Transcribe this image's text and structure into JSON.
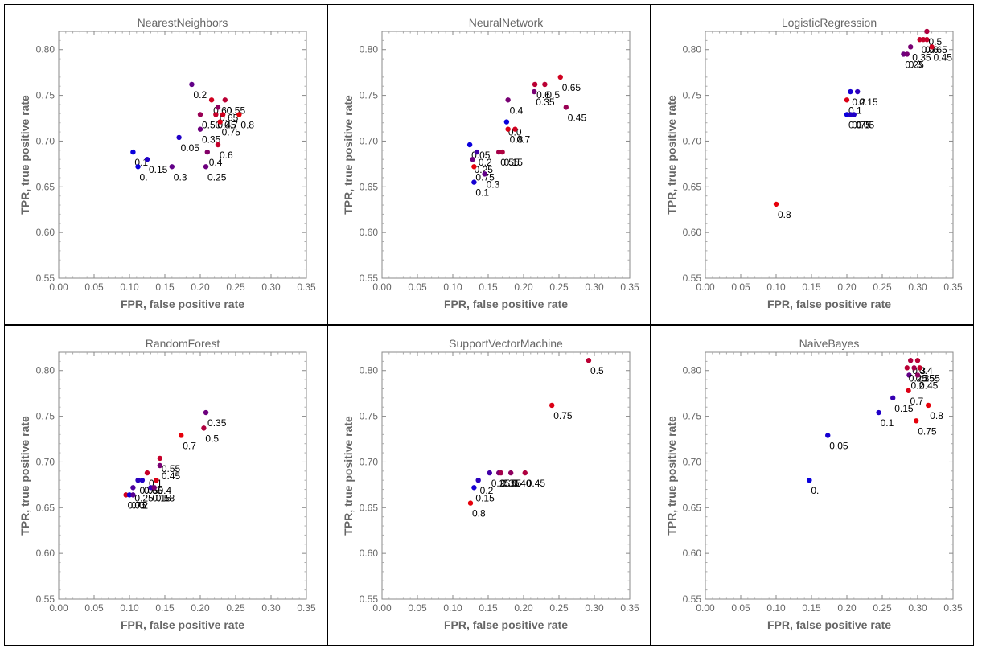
{
  "chart_data": [
    {
      "type": "scatter",
      "title": "NearestNeighbors",
      "xlabel": "FPR, false positive rate",
      "ylabel": "TPR, true positive rate",
      "xlim": [
        0,
        0.35
      ],
      "ylim": [
        0.55,
        0.82
      ],
      "xticks": [
        "0.00",
        "0.05",
        "0.10",
        "0.15",
        "0.20",
        "0.25",
        "0.30",
        "0.35"
      ],
      "yticks": [
        "0.55",
        "0.60",
        "0.65",
        "0.70",
        "0.75",
        "0.80"
      ],
      "points": [
        {
          "x": 0.105,
          "y": 0.688,
          "t": 0,
          "label": "0.1"
        },
        {
          "x": 0.112,
          "y": 0.672,
          "t": 0,
          "label": "0."
        },
        {
          "x": 0.125,
          "y": 0.68,
          "t": 0.1,
          "label": "0.15"
        },
        {
          "x": 0.17,
          "y": 0.704,
          "t": 0.1,
          "label": "0.05"
        },
        {
          "x": 0.16,
          "y": 0.672,
          "t": 0.4,
          "label": "0.3"
        },
        {
          "x": 0.188,
          "y": 0.762,
          "t": 0.4,
          "label": "0.2"
        },
        {
          "x": 0.2,
          "y": 0.713,
          "t": 0.45,
          "label": "0.35"
        },
        {
          "x": 0.2,
          "y": 0.729,
          "t": 0.65,
          "label": "0.50"
        },
        {
          "x": 0.21,
          "y": 0.688,
          "t": 0.55,
          "label": "0.4"
        },
        {
          "x": 0.208,
          "y": 0.672,
          "t": 0.45,
          "label": "0.25"
        },
        {
          "x": 0.216,
          "y": 0.745,
          "t": 0.9,
          "label": "0.60"
        },
        {
          "x": 0.222,
          "y": 0.729,
          "t": 0.85,
          "label": "0.45"
        },
        {
          "x": 0.225,
          "y": 0.737,
          "t": 0.6,
          "label": "0.65"
        },
        {
          "x": 0.228,
          "y": 0.721,
          "t": 0.95,
          "label": "0.75"
        },
        {
          "x": 0.225,
          "y": 0.696,
          "t": 0.85,
          "label": "0.6"
        },
        {
          "x": 0.235,
          "y": 0.745,
          "t": 0.8,
          "label": "0.55"
        },
        {
          "x": 0.232,
          "y": 0.729,
          "t": 0.9,
          "label": "0.7"
        },
        {
          "x": 0.255,
          "y": 0.729,
          "t": 1,
          "label": "0.8"
        }
      ]
    },
    {
      "type": "scatter",
      "title": "NeuralNetwork",
      "xlabel": "FPR, false positive rate",
      "ylabel": "TPR, true positive rate",
      "xlim": [
        0,
        0.35
      ],
      "ylim": [
        0.55,
        0.82
      ],
      "xticks": [
        "0.00",
        "0.05",
        "0.10",
        "0.15",
        "0.20",
        "0.25",
        "0.30",
        "0.35"
      ],
      "yticks": [
        "0.55",
        "0.60",
        "0.65",
        "0.70",
        "0.75",
        "0.80"
      ],
      "points": [
        {
          "x": 0.124,
          "y": 0.696,
          "t": 0,
          "label": "0.05"
        },
        {
          "x": 0.128,
          "y": 0.68,
          "t": 0.45,
          "label": "0.25"
        },
        {
          "x": 0.13,
          "y": 0.672,
          "t": 1,
          "label": "0.75"
        },
        {
          "x": 0.134,
          "y": 0.688,
          "t": 0.25,
          "label": "0.2"
        },
        {
          "x": 0.13,
          "y": 0.655,
          "t": 0.05,
          "label": "0.1"
        },
        {
          "x": 0.145,
          "y": 0.664,
          "t": 0.4,
          "label": "0.3"
        },
        {
          "x": 0.165,
          "y": 0.688,
          "t": 0.7,
          "label": "0.55"
        },
        {
          "x": 0.17,
          "y": 0.688,
          "t": 0.75,
          "label": "0.15"
        },
        {
          "x": 0.176,
          "y": 0.721,
          "t": 0,
          "label": "0.0"
        },
        {
          "x": 0.178,
          "y": 0.713,
          "t": 0.95,
          "label": "0.8"
        },
        {
          "x": 0.188,
          "y": 0.713,
          "t": 0.9,
          "label": "0.7"
        },
        {
          "x": 0.178,
          "y": 0.745,
          "t": 0.5,
          "label": "0.4"
        },
        {
          "x": 0.215,
          "y": 0.754,
          "t": 0.5,
          "label": "0.35"
        },
        {
          "x": 0.216,
          "y": 0.762,
          "t": 0.8,
          "label": "0.6"
        },
        {
          "x": 0.23,
          "y": 0.762,
          "t": 0.8,
          "label": "0.5"
        },
        {
          "x": 0.252,
          "y": 0.77,
          "t": 0.9,
          "label": "0.65"
        },
        {
          "x": 0.26,
          "y": 0.737,
          "t": 0.65,
          "label": "0.45"
        }
      ]
    },
    {
      "type": "scatter",
      "title": "LogisticRegression",
      "xlabel": "FPR, false positive rate",
      "ylabel": "TPR, true positive rate",
      "xlim": [
        0,
        0.35
      ],
      "ylim": [
        0.55,
        0.82
      ],
      "xticks": [
        "0.00",
        "0.05",
        "0.10",
        "0.15",
        "0.20",
        "0.25",
        "0.30",
        "0.35"
      ],
      "yticks": [
        "0.55",
        "0.60",
        "0.65",
        "0.70",
        "0.75",
        "0.80"
      ],
      "points": [
        {
          "x": 0.1,
          "y": 0.631,
          "t": 1,
          "label": "0.8"
        },
        {
          "x": 0.2,
          "y": 0.745,
          "t": 0.95,
          "label": "0.1"
        },
        {
          "x": 0.2,
          "y": 0.729,
          "t": 0,
          "label": "0.0"
        },
        {
          "x": 0.205,
          "y": 0.754,
          "t": 0.05,
          "label": "0.2"
        },
        {
          "x": 0.205,
          "y": 0.729,
          "t": 0.1,
          "label": "0.75"
        },
        {
          "x": 0.215,
          "y": 0.754,
          "t": 0.15,
          "label": "0.15"
        },
        {
          "x": 0.21,
          "y": 0.729,
          "t": 0.1,
          "label": "0.05"
        },
        {
          "x": 0.28,
          "y": 0.795,
          "t": 0.45,
          "label": "0.25"
        },
        {
          "x": 0.285,
          "y": 0.795,
          "t": 0.5,
          "label": "0.3"
        },
        {
          "x": 0.29,
          "y": 0.803,
          "t": 0.5,
          "label": "0.35"
        },
        {
          "x": 0.303,
          "y": 0.811,
          "t": 0.85,
          "label": "0.4"
        },
        {
          "x": 0.308,
          "y": 0.811,
          "t": 0.85,
          "label": "0.6"
        },
        {
          "x": 0.313,
          "y": 0.811,
          "t": 0.85,
          "label": "0.65"
        },
        {
          "x": 0.313,
          "y": 0.82,
          "t": 0.75,
          "label": "0.5"
        },
        {
          "x": 0.32,
          "y": 0.803,
          "t": 0.9,
          "label": "0.45"
        }
      ]
    },
    {
      "type": "scatter",
      "title": "RandomForest",
      "xlabel": "FPR, false positive rate",
      "ylabel": "TPR, true positive rate",
      "xlim": [
        0,
        0.35
      ],
      "ylim": [
        0.55,
        0.82
      ],
      "xticks": [
        "0.00",
        "0.05",
        "0.10",
        "0.15",
        "0.20",
        "0.25",
        "0.30",
        "0.35"
      ],
      "yticks": [
        "0.55",
        "0.60",
        "0.65",
        "0.70",
        "0.75",
        "0.80"
      ],
      "points": [
        {
          "x": 0.095,
          "y": 0.664,
          "t": 0.9,
          "label": "0.75"
        },
        {
          "x": 0.1,
          "y": 0.664,
          "t": 0.05,
          "label": "0.0"
        },
        {
          "x": 0.105,
          "y": 0.664,
          "t": 0.35,
          "label": "0.2"
        },
        {
          "x": 0.105,
          "y": 0.672,
          "t": 0.3,
          "label": "0.25"
        },
        {
          "x": 0.112,
          "y": 0.68,
          "t": 0.15,
          "label": "0.05"
        },
        {
          "x": 0.118,
          "y": 0.68,
          "t": 0.1,
          "label": "0.65"
        },
        {
          "x": 0.125,
          "y": 0.688,
          "t": 0.85,
          "label": "0.1"
        },
        {
          "x": 0.13,
          "y": 0.672,
          "t": 0.2,
          "label": "0.15"
        },
        {
          "x": 0.135,
          "y": 0.672,
          "t": 0.5,
          "label": "0.58"
        },
        {
          "x": 0.138,
          "y": 0.68,
          "t": 0.95,
          "label": "0.4"
        },
        {
          "x": 0.143,
          "y": 0.696,
          "t": 0.5,
          "label": "0.45"
        },
        {
          "x": 0.143,
          "y": 0.704,
          "t": 0.85,
          "label": "0.55"
        },
        {
          "x": 0.173,
          "y": 0.729,
          "t": 1,
          "label": "0.7"
        },
        {
          "x": 0.205,
          "y": 0.737,
          "t": 0.75,
          "label": "0.5"
        },
        {
          "x": 0.208,
          "y": 0.754,
          "t": 0.45,
          "label": "0.35"
        }
      ]
    },
    {
      "type": "scatter",
      "title": "SupportVectorMachine",
      "xlabel": "FPR, false positive rate",
      "ylabel": "TPR, true positive rate",
      "xlim": [
        0,
        0.35
      ],
      "ylim": [
        0.55,
        0.82
      ],
      "xticks": [
        "0.00",
        "0.05",
        "0.10",
        "0.15",
        "0.20",
        "0.25",
        "0.30",
        "0.35"
      ],
      "yticks": [
        "0.55",
        "0.60",
        "0.65",
        "0.70",
        "0.75",
        "0.80"
      ],
      "points": [
        {
          "x": 0.125,
          "y": 0.655,
          "t": 1,
          "label": "0.8"
        },
        {
          "x": 0.13,
          "y": 0.672,
          "t": 0.05,
          "label": "0.15"
        },
        {
          "x": 0.136,
          "y": 0.68,
          "t": 0.15,
          "label": "0.2"
        },
        {
          "x": 0.152,
          "y": 0.688,
          "t": 0.25,
          "label": "0.25"
        },
        {
          "x": 0.165,
          "y": 0.688,
          "t": 0.5,
          "label": "0.35"
        },
        {
          "x": 0.168,
          "y": 0.688,
          "t": 0.7,
          "label": "0.55"
        },
        {
          "x": 0.182,
          "y": 0.688,
          "t": 0.6,
          "label": "0.40"
        },
        {
          "x": 0.202,
          "y": 0.688,
          "t": 0.75,
          "label": "0.45"
        },
        {
          "x": 0.24,
          "y": 0.762,
          "t": 0.95,
          "label": "0.75"
        },
        {
          "x": 0.292,
          "y": 0.811,
          "t": 0.8,
          "label": "0.5"
        }
      ]
    },
    {
      "type": "scatter",
      "title": "NaiveBayes",
      "xlabel": "FPR, false positive rate",
      "ylabel": "TPR, true positive rate",
      "xlim": [
        0,
        0.35
      ],
      "ylim": [
        0.55,
        0.82
      ],
      "xticks": [
        "0.00",
        "0.05",
        "0.10",
        "0.15",
        "0.20",
        "0.25",
        "0.30",
        "0.35"
      ],
      "yticks": [
        "0.55",
        "0.60",
        "0.65",
        "0.70",
        "0.75",
        "0.80"
      ],
      "points": [
        {
          "x": 0.147,
          "y": 0.68,
          "t": 0,
          "label": "0."
        },
        {
          "x": 0.173,
          "y": 0.729,
          "t": 0.05,
          "label": "0.05"
        },
        {
          "x": 0.245,
          "y": 0.754,
          "t": 0.1,
          "label": "0.1"
        },
        {
          "x": 0.265,
          "y": 0.77,
          "t": 0.2,
          "label": "0.15"
        },
        {
          "x": 0.287,
          "y": 0.778,
          "t": 0.95,
          "label": "0.7"
        },
        {
          "x": 0.288,
          "y": 0.795,
          "t": 0.4,
          "label": "0.2"
        },
        {
          "x": 0.285,
          "y": 0.803,
          "t": 0.8,
          "label": "0.25"
        },
        {
          "x": 0.29,
          "y": 0.811,
          "t": 0.75,
          "label": "0.3"
        },
        {
          "x": 0.295,
          "y": 0.803,
          "t": 0.7,
          "label": "0.35"
        },
        {
          "x": 0.3,
          "y": 0.811,
          "t": 0.8,
          "label": "0.4"
        },
        {
          "x": 0.3,
          "y": 0.795,
          "t": 0.6,
          "label": "0.45"
        },
        {
          "x": 0.303,
          "y": 0.803,
          "t": 0.85,
          "label": "0.55"
        },
        {
          "x": 0.298,
          "y": 0.745,
          "t": 1,
          "label": "0.75"
        },
        {
          "x": 0.315,
          "y": 0.762,
          "t": 1,
          "label": "0.8"
        }
      ]
    }
  ]
}
